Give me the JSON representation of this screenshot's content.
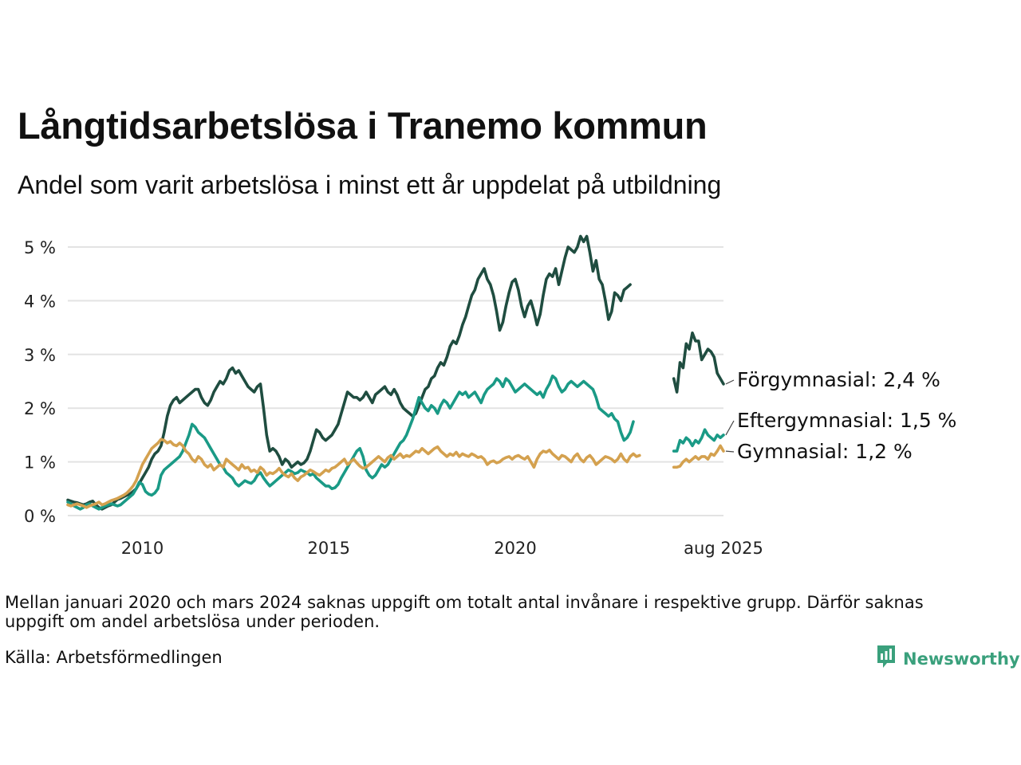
{
  "title": "Långtidsarbetslösa i Tranemo kommun",
  "subtitle": "Andel som varit arbetslösa i minst ett år uppdelat på utbildning",
  "note": "Mellan januari 2020 och mars 2024 saknas uppgift om totalt antal invånare i respektive grupp. Därför saknas uppgift om andel arbetslösa under perioden.",
  "source": "Källa: Arbetsförmedlingen",
  "brand": "Newsworthy",
  "colors": {
    "forgymnasial": "#1f4d40",
    "eftergymnasial": "#1a9a86",
    "gymnasial": "#d4a14f",
    "brand": "#3aa07c"
  },
  "chart_data": {
    "type": "line",
    "x_unit": "months",
    "x_start": "2008-01",
    "xlim": [
      "2008-01",
      "2025-08"
    ],
    "ylim": [
      0,
      5
    ],
    "y_ticks": [
      0,
      1,
      2,
      3,
      4,
      5
    ],
    "y_tick_labels": [
      "0 %",
      "1 %",
      "2 %",
      "3 %",
      "4 %",
      "5 %"
    ],
    "x_ticks": [
      {
        "date": "2010-01",
        "label": "2010"
      },
      {
        "date": "2015-01",
        "label": "2015"
      },
      {
        "date": "2020-01",
        "label": "2020"
      },
      {
        "date": "2025-08",
        "label": "aug 2025"
      }
    ],
    "grid": true,
    "legend": "end-labels",
    "series": [
      {
        "name": "Förgymnasial",
        "end_label": "Förgymnasial: 2,4 %",
        "color": "#1f4d40",
        "segments": [
          {
            "start": "2008-01",
            "values": [
              0.29,
              0.27,
              0.25,
              0.24,
              0.22,
              0.2,
              0.22,
              0.25,
              0.27,
              0.2,
              0.15,
              0.12,
              0.15,
              0.18,
              0.2,
              0.25,
              0.3,
              0.32,
              0.35,
              0.38,
              0.4,
              0.45,
              0.5,
              0.6,
              0.7,
              0.8,
              0.9,
              1.05,
              1.15,
              1.2,
              1.3,
              1.55,
              1.85,
              2.05,
              2.15,
              2.2,
              2.1,
              2.15,
              2.2,
              2.25,
              2.3,
              2.35,
              2.35,
              2.2,
              2.1,
              2.05,
              2.15,
              2.3,
              2.4,
              2.5,
              2.45,
              2.55,
              2.7,
              2.75,
              2.65,
              2.7,
              2.6,
              2.5,
              2.4,
              2.35,
              2.3,
              2.4,
              2.45,
              2.0,
              1.5,
              1.2,
              1.25,
              1.2,
              1.1,
              0.95,
              1.05,
              1.0,
              0.9,
              0.95,
              1.0,
              0.95,
              0.98,
              1.05,
              1.2,
              1.4,
              1.6,
              1.55,
              1.45,
              1.4,
              1.45,
              1.5,
              1.6,
              1.7,
              1.9,
              2.1,
              2.3,
              2.25,
              2.2,
              2.2,
              2.15,
              2.2,
              2.3,
              2.2,
              2.1,
              2.25,
              2.3,
              2.35,
              2.4,
              2.3,
              2.25,
              2.35,
              2.25,
              2.1,
              2.0,
              1.95,
              1.9,
              1.85,
              1.9,
              2.05,
              2.2,
              2.35,
              2.4,
              2.55,
              2.6,
              2.75,
              2.85,
              2.8,
              2.95,
              3.15,
              3.25,
              3.2,
              3.35,
              3.55,
              3.7,
              3.9,
              4.1,
              4.2,
              4.4,
              4.5,
              4.6,
              4.4,
              4.3,
              4.1,
              3.8,
              3.45,
              3.6,
              3.9,
              4.15,
              4.35,
              4.4,
              4.2,
              3.9,
              3.7,
              3.9,
              4.0,
              3.8,
              3.55,
              3.75,
              4.1,
              4.4,
              4.5,
              4.45,
              4.6,
              4.3,
              4.55,
              4.8,
              5.0,
              4.95,
              4.9,
              5.0,
              5.2,
              5.1,
              5.2,
              4.9,
              4.55,
              4.75,
              4.4,
              4.3,
              4.0,
              3.65,
              3.8,
              4.15,
              4.1,
              4.0,
              4.2,
              4.25,
              4.3
            ]
          },
          {
            "start": "2024-04",
            "values": [
              2.55,
              2.3,
              2.85,
              2.75,
              3.2,
              3.1,
              3.4,
              3.25,
              3.25,
              2.9,
              3.0,
              3.1,
              3.05,
              2.95,
              2.65,
              2.55,
              2.45
            ]
          }
        ]
      },
      {
        "name": "Eftergymnasial",
        "end_label": "Eftergymnasial: 1,5 %",
        "color": "#1a9a86",
        "segments": [
          {
            "start": "2008-01",
            "values": [
              0.25,
              0.22,
              0.18,
              0.15,
              0.12,
              0.15,
              0.2,
              0.22,
              0.18,
              0.15,
              0.12,
              0.15,
              0.18,
              0.2,
              0.22,
              0.2,
              0.18,
              0.2,
              0.25,
              0.3,
              0.35,
              0.4,
              0.5,
              0.62,
              0.58,
              0.45,
              0.4,
              0.38,
              0.42,
              0.5,
              0.75,
              0.85,
              0.9,
              0.95,
              1.0,
              1.05,
              1.1,
              1.2,
              1.35,
              1.5,
              1.7,
              1.65,
              1.55,
              1.5,
              1.45,
              1.35,
              1.25,
              1.15,
              1.05,
              0.95,
              0.9,
              0.8,
              0.75,
              0.7,
              0.6,
              0.55,
              0.6,
              0.65,
              0.62,
              0.6,
              0.65,
              0.75,
              0.8,
              0.7,
              0.62,
              0.55,
              0.6,
              0.65,
              0.7,
              0.75,
              0.8,
              0.85,
              0.82,
              0.78,
              0.8,
              0.85,
              0.82,
              0.8,
              0.75,
              0.78,
              0.7,
              0.65,
              0.6,
              0.55,
              0.55,
              0.5,
              0.52,
              0.58,
              0.7,
              0.8,
              0.9,
              1.0,
              1.1,
              1.2,
              1.25,
              1.1,
              0.85,
              0.75,
              0.7,
              0.75,
              0.85,
              0.95,
              0.9,
              0.95,
              1.05,
              1.15,
              1.25,
              1.35,
              1.4,
              1.5,
              1.65,
              1.8,
              2.0,
              2.2,
              2.1,
              2.0,
              1.95,
              2.05,
              2.0,
              1.9,
              2.05,
              2.15,
              2.1,
              2.0,
              2.1,
              2.2,
              2.3,
              2.25,
              2.3,
              2.2,
              2.25,
              2.3,
              2.2,
              2.1,
              2.25,
              2.35,
              2.4,
              2.45,
              2.55,
              2.5,
              2.4,
              2.55,
              2.5,
              2.4,
              2.3,
              2.35,
              2.4,
              2.45,
              2.4,
              2.35,
              2.3,
              2.25,
              2.3,
              2.2,
              2.35,
              2.45,
              2.6,
              2.55,
              2.4,
              2.3,
              2.35,
              2.45,
              2.5,
              2.45,
              2.4,
              2.45,
              2.5,
              2.45,
              2.4,
              2.35,
              2.2,
              2.0,
              1.95,
              1.9,
              1.85,
              1.9,
              1.8,
              1.75,
              1.55,
              1.4,
              1.45,
              1.55,
              1.75
            ]
          },
          {
            "start": "2024-04",
            "values": [
              1.2,
              1.2,
              1.4,
              1.35,
              1.45,
              1.4,
              1.3,
              1.4,
              1.35,
              1.45,
              1.6,
              1.5,
              1.45,
              1.4,
              1.5,
              1.45,
              1.5
            ]
          }
        ]
      },
      {
        "name": "Gymnasial",
        "end_label": "Gymnasial: 1,2 %",
        "color": "#d4a14f",
        "segments": [
          {
            "start": "2008-01",
            "values": [
              0.2,
              0.18,
              0.2,
              0.22,
              0.2,
              0.18,
              0.15,
              0.18,
              0.2,
              0.22,
              0.25,
              0.2,
              0.22,
              0.25,
              0.28,
              0.3,
              0.32,
              0.35,
              0.38,
              0.42,
              0.48,
              0.55,
              0.65,
              0.8,
              0.95,
              1.05,
              1.15,
              1.25,
              1.3,
              1.35,
              1.42,
              1.4,
              1.35,
              1.38,
              1.32,
              1.3,
              1.35,
              1.3,
              1.2,
              1.15,
              1.05,
              1.0,
              1.1,
              1.05,
              0.95,
              0.9,
              0.95,
              0.85,
              0.9,
              0.95,
              0.9,
              1.05,
              1.0,
              0.95,
              0.9,
              0.85,
              0.95,
              0.88,
              0.9,
              0.82,
              0.85,
              0.8,
              0.9,
              0.85,
              0.75,
              0.8,
              0.78,
              0.82,
              0.88,
              0.8,
              0.75,
              0.72,
              0.78,
              0.7,
              0.65,
              0.72,
              0.75,
              0.8,
              0.85,
              0.82,
              0.78,
              0.75,
              0.8,
              0.85,
              0.82,
              0.88,
              0.9,
              0.95,
              1.0,
              1.05,
              0.95,
              1.0,
              1.05,
              0.98,
              0.92,
              0.88,
              0.9,
              0.95,
              1.0,
              1.05,
              1.1,
              1.05,
              1.0,
              1.08,
              1.12,
              1.05,
              1.1,
              1.15,
              1.08,
              1.12,
              1.1,
              1.15,
              1.2,
              1.18,
              1.25,
              1.2,
              1.15,
              1.2,
              1.25,
              1.28,
              1.2,
              1.15,
              1.1,
              1.15,
              1.12,
              1.18,
              1.1,
              1.15,
              1.12,
              1.1,
              1.15,
              1.12,
              1.08,
              1.1,
              1.05,
              0.95,
              1.0,
              1.02,
              0.98,
              1.0,
              1.05,
              1.08,
              1.1,
              1.05,
              1.1,
              1.12,
              1.08,
              1.05,
              1.1,
              1.0,
              0.9,
              1.05,
              1.15,
              1.2,
              1.18,
              1.22,
              1.15,
              1.1,
              1.05,
              1.12,
              1.1,
              1.05,
              1.0,
              1.1,
              1.15,
              1.05,
              1.0,
              1.08,
              1.12,
              1.05,
              0.95,
              1.0,
              1.05,
              1.1,
              1.08,
              1.05,
              1.0,
              1.05,
              1.15,
              1.05,
              1.0,
              1.1,
              1.15,
              1.1,
              1.12
            ]
          },
          {
            "start": "2024-04",
            "values": [
              0.9,
              0.9,
              0.92,
              1.0,
              1.05,
              1.0,
              1.05,
              1.1,
              1.05,
              1.1,
              1.1,
              1.05,
              1.15,
              1.12,
              1.2,
              1.3,
              1.2
            ]
          }
        ]
      }
    ]
  }
}
